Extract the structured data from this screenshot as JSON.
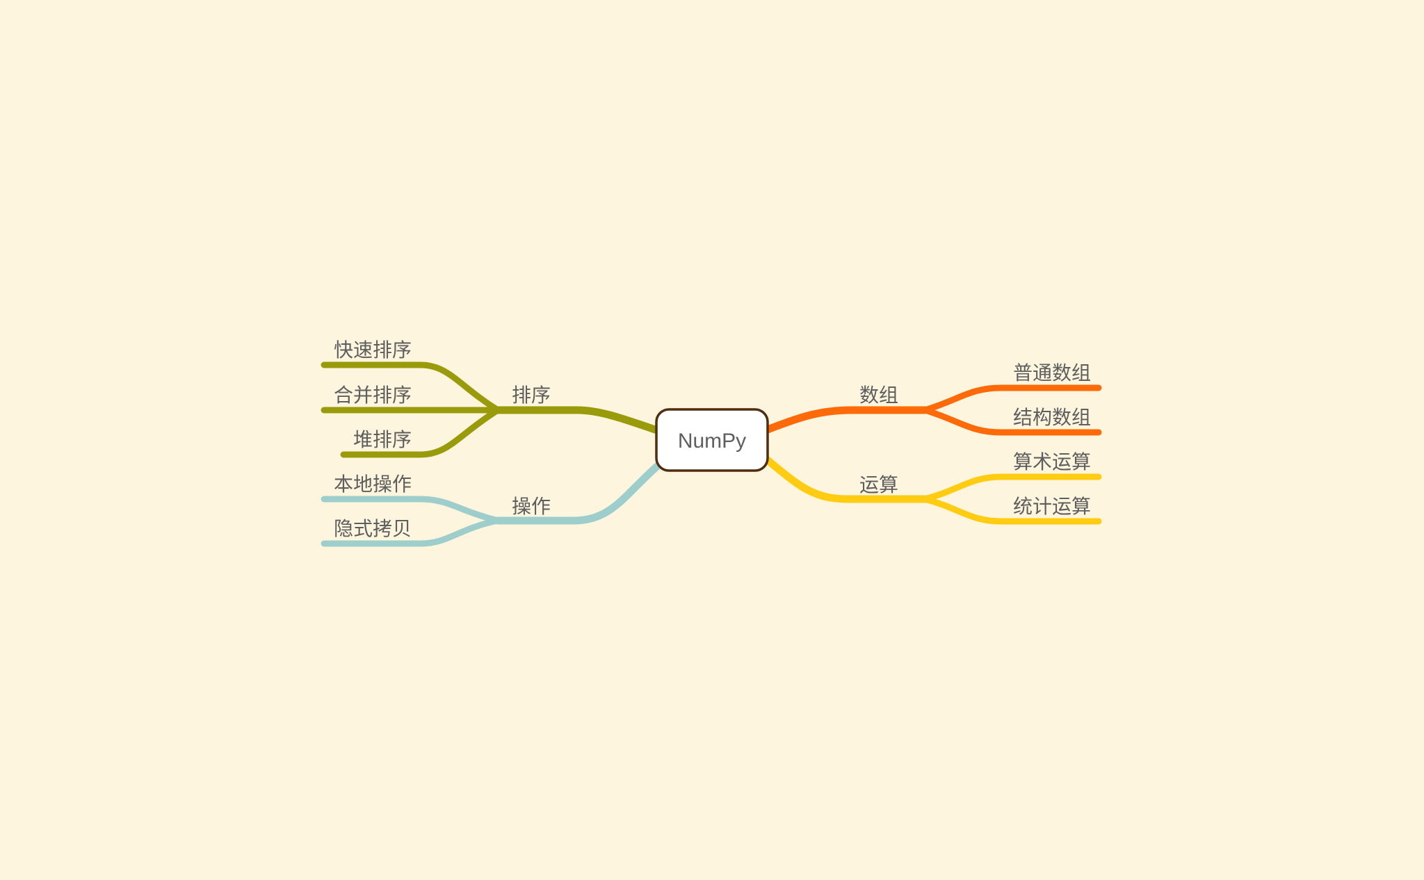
{
  "central": {
    "label": "NumPy"
  },
  "branches": [
    {
      "id": "sorting",
      "label": "排序",
      "color": "#9A9B0A",
      "side": "left",
      "children": [
        "快速排序",
        "合并排序",
        "堆排序"
      ]
    },
    {
      "id": "operations",
      "label": "操作",
      "color": "#9ECECB",
      "side": "left",
      "children": [
        "本地操作",
        "隐式拷贝"
      ]
    },
    {
      "id": "arrays",
      "label": "数组",
      "color": "#FF6A09",
      "side": "right",
      "children": [
        "普通数组",
        "结构数组"
      ]
    },
    {
      "id": "computation",
      "label": "运算",
      "color": "#FFCC12",
      "side": "right",
      "children": [
        "算术运算",
        "统计运算"
      ]
    }
  ],
  "colors": {
    "background": "#FEF5DE",
    "text": "#5E5E5E",
    "central_border": "#4F2D0E",
    "central_fill": "#FFFFFF"
  }
}
